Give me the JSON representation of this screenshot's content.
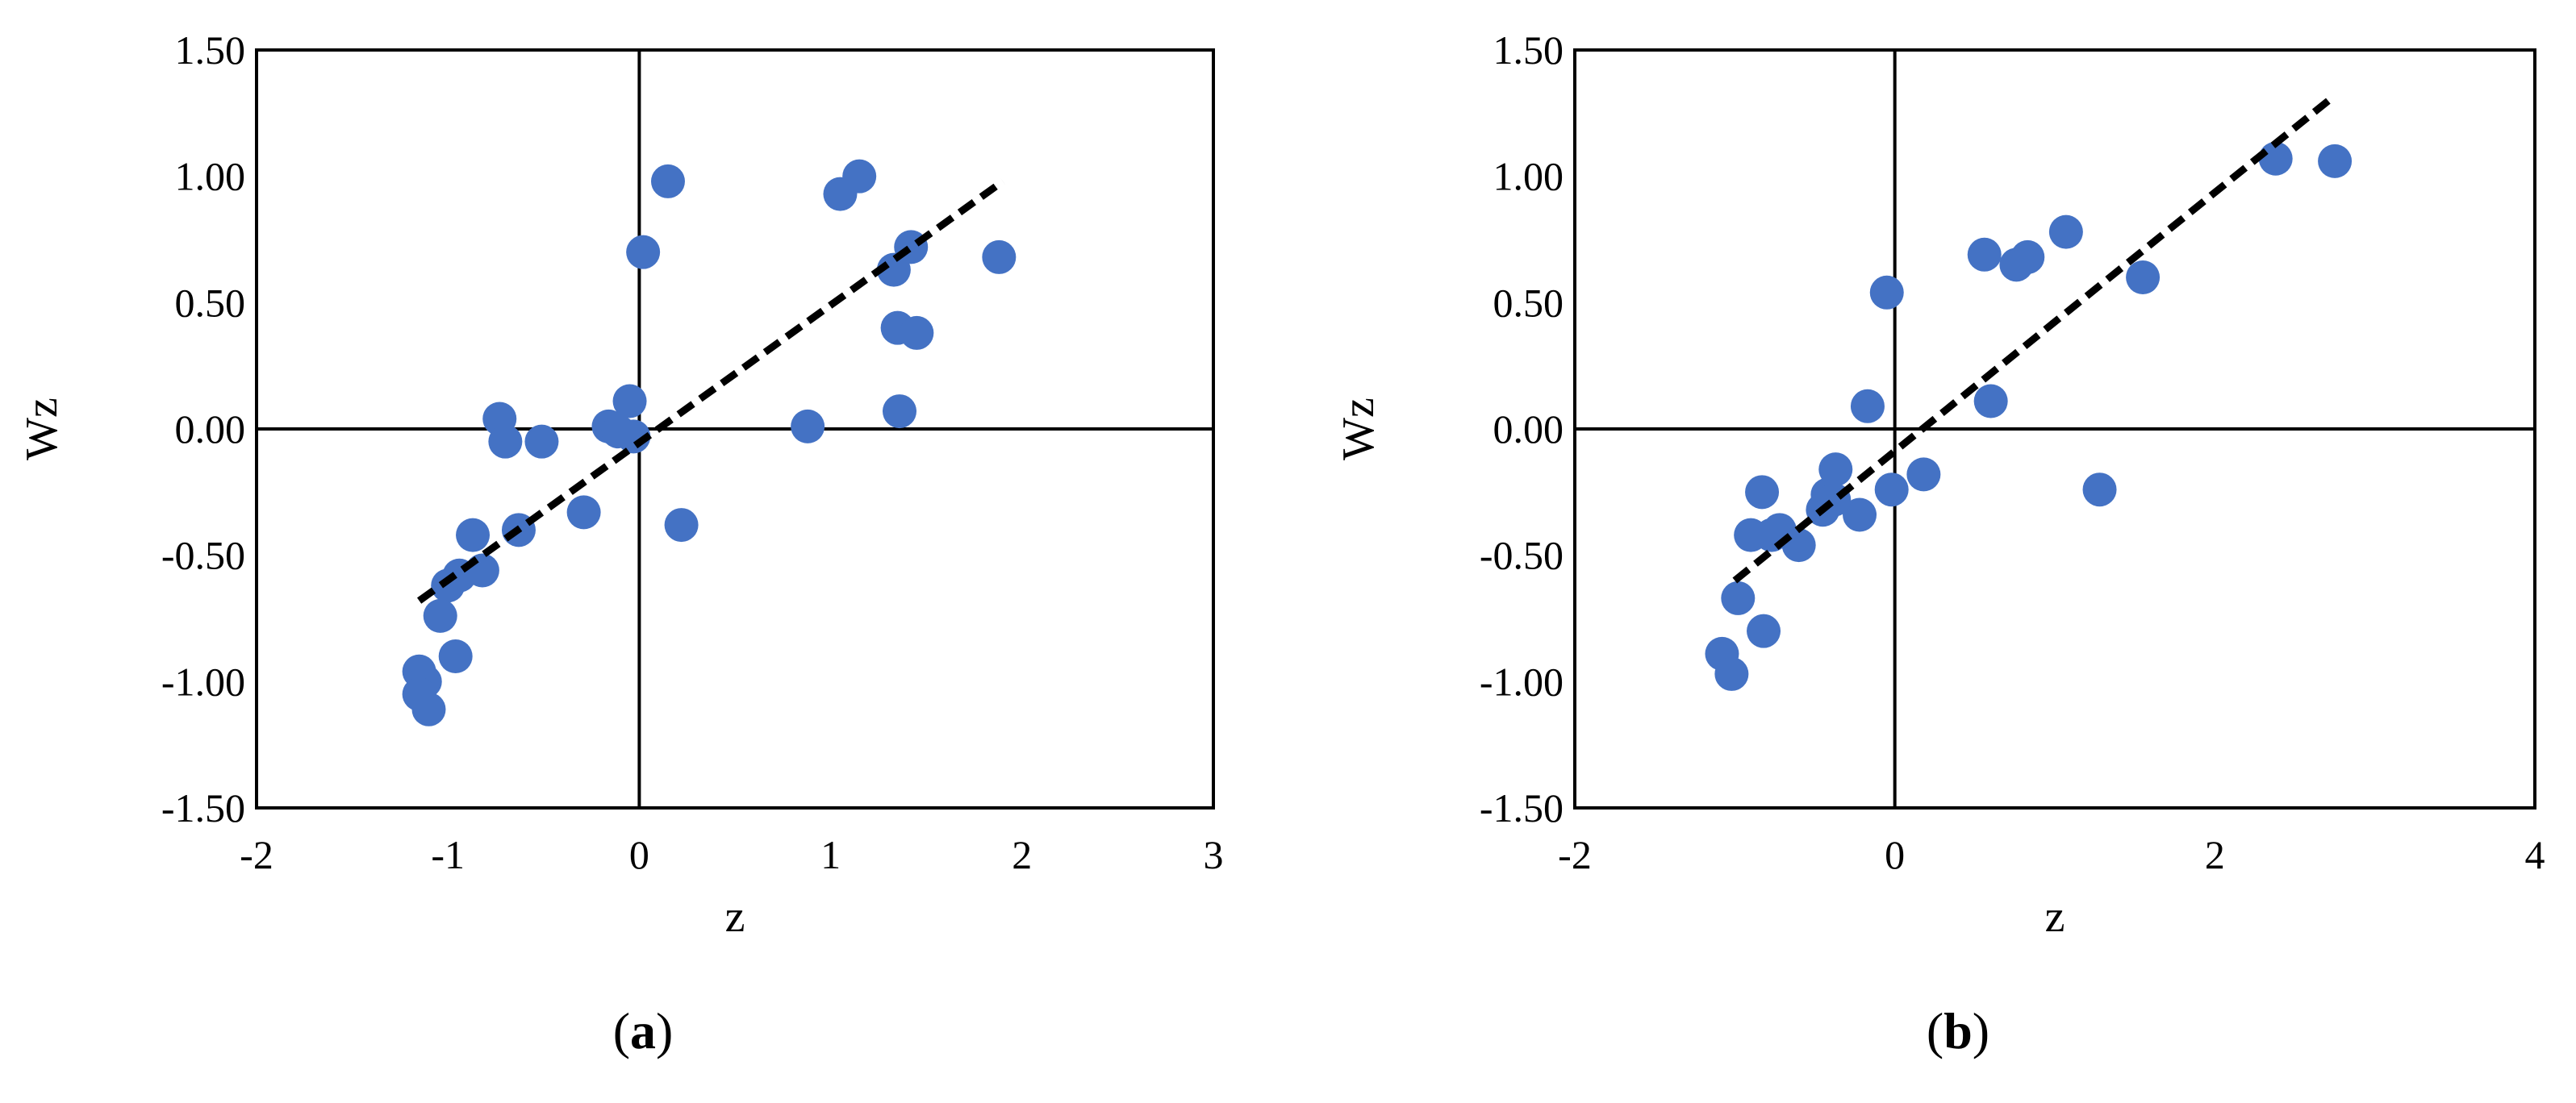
{
  "colors": {
    "marker": "#4472C4",
    "trend": "#000000",
    "frame": "#000000"
  },
  "chart_data": [
    {
      "type": "scatter",
      "panel_label": "a",
      "xlabel": "z",
      "ylabel": "Wz",
      "xlim": [
        -2,
        3
      ],
      "ylim": [
        -1.5,
        1.5
      ],
      "xticks": [
        "-2",
        "-1",
        "0",
        "1",
        "2",
        "3"
      ],
      "yticks": [
        "1.50",
        "1.00",
        "0.50",
        "0.00",
        "-0.50",
        "-1.00",
        "-1.50"
      ],
      "grid": false,
      "trendline": {
        "style": "dashed",
        "from": [
          -1.15,
          -0.68
        ],
        "to": [
          1.9,
          0.98
        ]
      },
      "points": [
        [
          0.15,
          0.98
        ],
        [
          1.15,
          1.0
        ],
        [
          1.05,
          0.93
        ],
        [
          0.02,
          0.7
        ],
        [
          1.88,
          0.68
        ],
        [
          1.42,
          0.72
        ],
        [
          1.33,
          0.63
        ],
        [
          1.35,
          0.4
        ],
        [
          1.45,
          0.38
        ],
        [
          1.36,
          0.07
        ],
        [
          -0.73,
          0.04
        ],
        [
          -0.05,
          0.11
        ],
        [
          -0.16,
          0.01
        ],
        [
          -0.11,
          -0.01
        ],
        [
          -0.03,
          -0.03
        ],
        [
          -0.7,
          -0.05
        ],
        [
          -0.51,
          -0.05
        ],
        [
          0.88,
          0.01
        ],
        [
          0.22,
          -0.38
        ],
        [
          -0.29,
          -0.33
        ],
        [
          -0.63,
          -0.4
        ],
        [
          -0.87,
          -0.42
        ],
        [
          -0.82,
          -0.56
        ],
        [
          -0.94,
          -0.58
        ],
        [
          -1.0,
          -0.62
        ],
        [
          -1.04,
          -0.74
        ],
        [
          -0.96,
          -0.9
        ],
        [
          -1.15,
          -0.96
        ],
        [
          -1.12,
          -1.0
        ],
        [
          -1.15,
          -1.05
        ],
        [
          -1.1,
          -1.11
        ]
      ]
    },
    {
      "type": "scatter",
      "panel_label": "b",
      "xlabel": "z",
      "ylabel": "Wz",
      "xlim": [
        -2,
        4
      ],
      "ylim": [
        -1.5,
        1.5
      ],
      "xticks": [
        "-2",
        "0",
        "2",
        "4"
      ],
      "yticks": [
        "1.50",
        "1.00",
        "0.50",
        "0.00",
        "-0.50",
        "-1.00",
        "-1.50"
      ],
      "grid": false,
      "trendline": {
        "style": "dashed",
        "from": [
          -1.0,
          -0.6
        ],
        "to": [
          2.75,
          1.32
        ]
      },
      "points": [
        [
          2.38,
          1.07
        ],
        [
          2.75,
          1.06
        ],
        [
          1.07,
          0.78
        ],
        [
          0.56,
          0.69
        ],
        [
          0.76,
          0.65
        ],
        [
          0.83,
          0.68
        ],
        [
          1.55,
          0.6
        ],
        [
          -0.05,
          0.54
        ],
        [
          -0.17,
          0.09
        ],
        [
          0.6,
          0.11
        ],
        [
          0.18,
          -0.18
        ],
        [
          -0.02,
          -0.24
        ],
        [
          1.28,
          -0.24
        ],
        [
          -0.37,
          -0.16
        ],
        [
          -0.83,
          -0.25
        ],
        [
          -0.42,
          -0.26
        ],
        [
          -0.45,
          -0.32
        ],
        [
          -0.22,
          -0.34
        ],
        [
          -0.38,
          -0.28
        ],
        [
          -0.72,
          -0.4
        ],
        [
          -0.77,
          -0.42
        ],
        [
          -0.9,
          -0.42
        ],
        [
          -0.6,
          -0.46
        ],
        [
          -0.98,
          -0.67
        ],
        [
          -0.82,
          -0.8
        ],
        [
          -1.08,
          -0.89
        ],
        [
          -1.02,
          -0.97
        ]
      ]
    }
  ]
}
